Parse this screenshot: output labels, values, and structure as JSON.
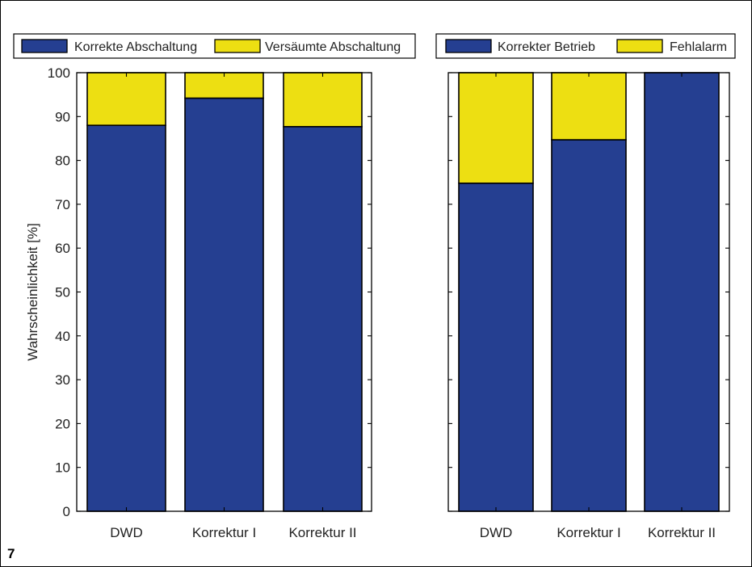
{
  "figure_number": "7",
  "colors": {
    "correct": "#253f91",
    "error": "#eddf12",
    "axis": "#000000",
    "text": "#222222"
  },
  "chart_data": [
    {
      "type": "bar",
      "stacked": true,
      "title": "",
      "xlabel": "",
      "ylabel": "Wahrscheinlichkeit [%]",
      "ylim": [
        0,
        100
      ],
      "yticks": [
        0,
        10,
        20,
        30,
        40,
        50,
        60,
        70,
        80,
        90,
        100
      ],
      "categories": [
        "DWD",
        "Korrektur I",
        "Korrektur II"
      ],
      "legend_position": "top",
      "series": [
        {
          "name": "Korrekte Abschaltung",
          "color": "#253f91",
          "values": [
            88,
            94.2,
            87.7
          ]
        },
        {
          "name": "Versäumte Abschaltung",
          "color": "#eddf12",
          "values": [
            12,
            5.8,
            12.3
          ]
        }
      ]
    },
    {
      "type": "bar",
      "stacked": true,
      "title": "",
      "xlabel": "",
      "ylabel": "",
      "ylim": [
        0,
        100
      ],
      "yticks": [
        0,
        10,
        20,
        30,
        40,
        50,
        60,
        70,
        80,
        90,
        100
      ],
      "categories": [
        "DWD",
        "Korrektur I",
        "Korrektur II"
      ],
      "legend_position": "top",
      "series": [
        {
          "name": "Korrekter Betrieb",
          "color": "#253f91",
          "values": [
            74.8,
            84.7,
            100
          ]
        },
        {
          "name": "Fehlalarm",
          "color": "#eddf12",
          "values": [
            25.2,
            15.3,
            0
          ]
        }
      ]
    }
  ]
}
